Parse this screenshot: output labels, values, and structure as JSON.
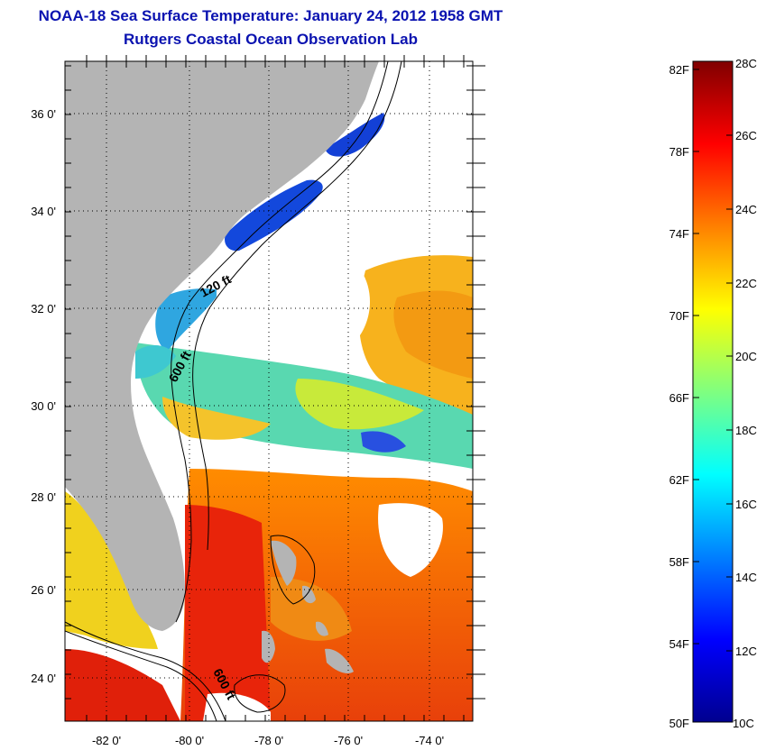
{
  "header": {
    "title": "NOAA-18 Sea Surface Temperature:  January 24, 2012 1958 GMT",
    "subtitle": "Rutgers Coastal Ocean Observation Lab"
  },
  "map": {
    "lat_range": [
      23.0,
      37.0
    ],
    "lon_range": [
      -83.0,
      -73.0
    ],
    "lat_ticks": [
      "36 0'",
      "34 0'",
      "32 0'",
      "30 0'",
      "28 0'",
      "26 0'",
      "24 0'"
    ],
    "lon_ticks": [
      "-82 0'",
      "-80 0'",
      "-78 0'",
      "-76 0'",
      "-74 0'"
    ],
    "grid": "dotted",
    "contour_labels": [
      "120 ft",
      "600 ft",
      "600 ft"
    ],
    "land_color": "#b4b4b4",
    "cloud_color": "#ffffff"
  },
  "colorbar": {
    "fahrenheit_labels": [
      "82F",
      "78F",
      "74F",
      "70F",
      "66F",
      "62F",
      "58F",
      "54F",
      "50F"
    ],
    "celsius_labels": [
      "28C",
      "26C",
      "24C",
      "22C",
      "20C",
      "18C",
      "16C",
      "14C",
      "12C",
      "10C"
    ],
    "range_c": [
      10,
      28
    ],
    "colormap": "jet"
  }
}
